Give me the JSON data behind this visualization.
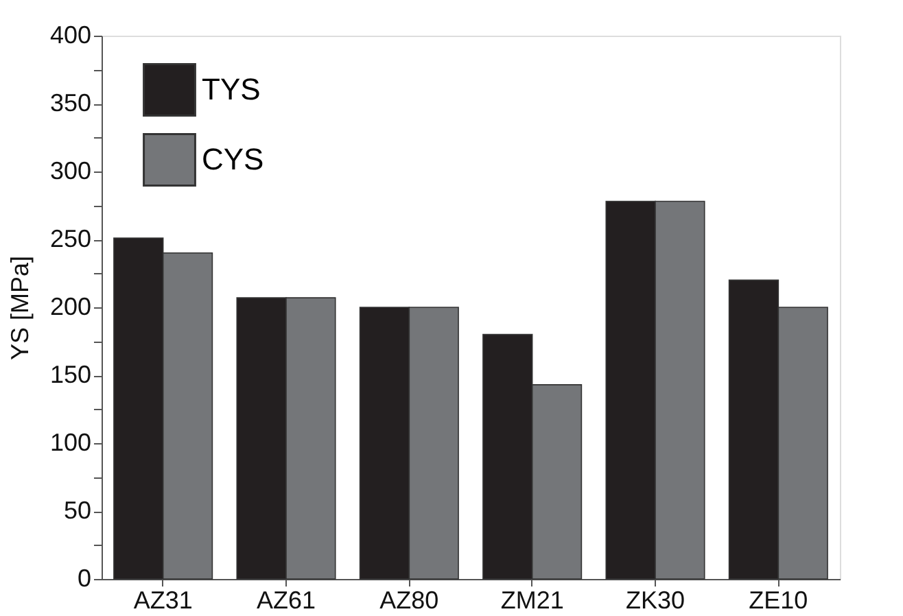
{
  "chart_data": {
    "type": "bar",
    "ylabel": "YS [MPa]",
    "categories": [
      "AZ31",
      "AZ61",
      "AZ80",
      "ZM21",
      "ZK30",
      "ZE10"
    ],
    "series": [
      {
        "name": "TYS",
        "color": "#231f20",
        "values": [
          251,
          207,
          200,
          180,
          278,
          220
        ]
      },
      {
        "name": "CYS",
        "color": "#747679",
        "values": [
          240,
          207,
          200,
          143,
          278,
          200
        ]
      }
    ],
    "ylim": [
      0,
      400
    ],
    "yticks": [
      0,
      {
        "value": 25,
        "label": null
      },
      50,
      {
        "value": 75,
        "label": null
      },
      100,
      {
        "value": 125,
        "label": null
      },
      150,
      {
        "value": 175,
        "label": null
      },
      200,
      {
        "value": 225,
        "label": null
      },
      250,
      {
        "value": 275,
        "label": null
      },
      300,
      {
        "value": 325,
        "label": null
      },
      350,
      {
        "value": 375,
        "label": null
      },
      400
    ],
    "grid": false,
    "legend": "top left"
  }
}
